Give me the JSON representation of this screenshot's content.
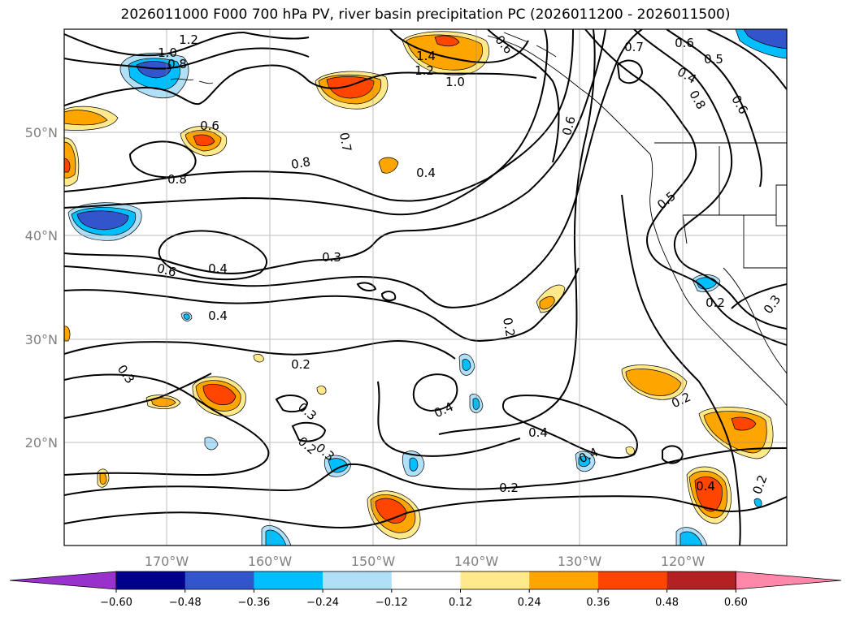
{
  "title": "2026011000 F000 700 hPa PV, river basin precipitation PC (2026011200 - 2026011500)",
  "map": {
    "lon_labels": [
      "170°W",
      "160°W",
      "150°W",
      "140°W",
      "130°W",
      "120°W"
    ],
    "lat_labels": [
      "50°N",
      "40°N",
      "30°N",
      "20°N"
    ],
    "gridlines": true,
    "projection_extent": {
      "lon": [
        -180,
        -110
      ],
      "lat": [
        10,
        60
      ]
    }
  },
  "pv_contour_labels": [
    "1.2",
    "1.0",
    "0.8",
    "0.6",
    "0.8",
    "0.8",
    "0.7",
    "0.6",
    "1.4",
    "1.2",
    "1.0",
    "0.4",
    "0.6",
    "0.7",
    "0.6",
    "0.5",
    "0.4",
    "0.8",
    "0.5",
    "0.6",
    "0.4",
    "0.3",
    "0.4",
    "0.2",
    "0.3",
    "0.3",
    "0.2",
    "0.3",
    "0.2",
    "0.4",
    "0.4",
    "0.2",
    "0.4",
    "0.2",
    "0.4",
    "0.2",
    "0.2",
    "0.3",
    "0.6"
  ],
  "colorbar": {
    "tick_labels": [
      "−0.60",
      "−0.48",
      "−0.36",
      "−0.24",
      "−0.12",
      "0.12",
      "0.24",
      "0.36",
      "0.48",
      "0.60"
    ],
    "bins": [
      {
        "color": "#9932cc"
      },
      {
        "color": "#00008b"
      },
      {
        "color": "#3355cc"
      },
      {
        "color": "#00bfff"
      },
      {
        "color": "#b0e0f8"
      },
      {
        "color": "#ffffff"
      },
      {
        "color": "#ffe98a"
      },
      {
        "color": "#ffa500"
      },
      {
        "color": "#ff4500"
      },
      {
        "color": "#b22222"
      },
      {
        "color": "#ff88aa"
      }
    ]
  },
  "legend_colors": {
    "positive_0_12_0_24": "#ffe98a",
    "positive_0_24_0_36": "#ffa500",
    "positive_0_36_0_48": "#ff4500",
    "negative_0_12_0_24": "#b0e0f8",
    "negative_0_24_0_36": "#00bfff",
    "negative_0_36_0_48": "#3355cc",
    "contour_color": "#000000"
  }
}
